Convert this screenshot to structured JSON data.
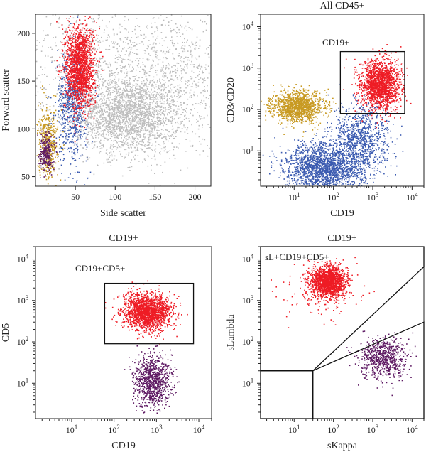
{
  "colors": {
    "red": "#ee1c25",
    "blue": "#3a5ab0",
    "gold": "#c89a22",
    "gray": "#bdbdbd",
    "purple": "#5e1a63",
    "ink": "#222222"
  },
  "chart_data": [
    {
      "id": "scatter-fsc-ssc",
      "type": "scatter",
      "title": "",
      "xlabel": "Side scatter",
      "ylabel": "Forward scatter",
      "xlim": [
        0,
        220
      ],
      "ylim": [
        40,
        220
      ],
      "xscale": "linear",
      "yscale": "linear",
      "xticks": [
        50,
        100,
        150,
        200
      ],
      "yticks": [
        50,
        100,
        150,
        200
      ],
      "grid": false,
      "populations": [
        {
          "color": "gray",
          "cx": 115,
          "cy": 115,
          "sx": 32,
          "sy": 20,
          "n": 2200
        },
        {
          "color": "gray",
          "cx": 90,
          "cy": 165,
          "sx": 75,
          "sy": 40,
          "n": 1200
        },
        {
          "color": "gray",
          "cx": 180,
          "cy": 150,
          "sx": 30,
          "sy": 40,
          "n": 500
        },
        {
          "color": "blue",
          "cx": 45,
          "cy": 125,
          "sx": 10,
          "sy": 28,
          "n": 700
        },
        {
          "color": "red",
          "cx": 55,
          "cy": 165,
          "sx": 9,
          "sy": 22,
          "n": 1700
        },
        {
          "color": "gold",
          "cx": 15,
          "cy": 85,
          "sx": 6,
          "sy": 18,
          "n": 450
        },
        {
          "color": "purple",
          "cx": 13,
          "cy": 75,
          "sx": 4,
          "sy": 10,
          "n": 250
        }
      ],
      "gates": [],
      "annotations": []
    },
    {
      "id": "scatter-cd3cd20-cd19",
      "type": "scatter",
      "title": "All CD45+",
      "xlabel": "CD19",
      "ylabel": "CD3/CD20",
      "xlim": [
        1.4,
        20000
      ],
      "ylim": [
        1.4,
        20000
      ],
      "xscale": "log",
      "yscale": "log",
      "xticks": [
        10,
        100,
        1000,
        10000
      ],
      "yticks": [
        10,
        100,
        1000,
        10000
      ],
      "grid": false,
      "populations": [
        {
          "color": "blue",
          "cx": 60,
          "cy": 4,
          "sx": 0.5,
          "sy": 0.3,
          "n": 1900
        },
        {
          "color": "blue",
          "cx": 500,
          "cy": 20,
          "sx": 0.35,
          "sy": 0.45,
          "n": 900
        },
        {
          "color": "gold",
          "cx": 12,
          "cy": 120,
          "sx": 0.32,
          "sy": 0.18,
          "n": 1300
        },
        {
          "color": "red",
          "cx": 1500,
          "cy": 400,
          "sx": 0.25,
          "sy": 0.3,
          "n": 1700
        }
      ],
      "gates": [
        {
          "shape": "rect",
          "label": "CD19+",
          "x": [
            150,
            6500
          ],
          "y": [
            80,
            2500
          ]
        }
      ],
      "annotations": []
    },
    {
      "id": "scatter-cd5-cd19",
      "type": "scatter",
      "title": "CD19+",
      "xlabel": "CD19",
      "ylabel": "CD5",
      "xlim": [
        1.4,
        20000
      ],
      "ylim": [
        1.4,
        20000
      ],
      "xscale": "log",
      "yscale": "log",
      "xticks": [
        10,
        100,
        1000,
        10000
      ],
      "yticks": [
        10,
        100,
        1000,
        10000
      ],
      "grid": false,
      "populations": [
        {
          "color": "red",
          "cx": 600,
          "cy": 550,
          "sx": 0.28,
          "sy": 0.22,
          "n": 1800
        },
        {
          "color": "purple",
          "cx": 800,
          "cy": 12,
          "sx": 0.22,
          "sy": 0.3,
          "n": 900
        }
      ],
      "gates": [
        {
          "shape": "rect",
          "label": "CD19+CD5+",
          "x": [
            60,
            7500
          ],
          "y": [
            90,
            2600
          ]
        }
      ],
      "annotations": []
    },
    {
      "id": "scatter-slambda-skappa",
      "type": "scatter",
      "title": "CD19+",
      "xlabel": "sKappa",
      "ylabel": "sLambda",
      "xlim": [
        1.4,
        20000
      ],
      "ylim": [
        1.4,
        20000
      ],
      "xscale": "log",
      "yscale": "log",
      "xticks": [
        10,
        100,
        1000,
        10000
      ],
      "yticks": [
        10,
        100,
        1000,
        10000
      ],
      "grid": false,
      "populations": [
        {
          "color": "red",
          "cx": 70,
          "cy": 3000,
          "sx": 0.22,
          "sy": 0.18,
          "n": 1600
        },
        {
          "color": "red",
          "cx": 40,
          "cy": 1500,
          "sx": 0.5,
          "sy": 0.35,
          "n": 160
        },
        {
          "color": "purple",
          "cx": 1800,
          "cy": 40,
          "sx": 0.3,
          "sy": 0.25,
          "n": 700
        }
      ],
      "gates": [
        {
          "shape": "polygon",
          "label": "sL+CD19+CD5+",
          "points": [
            [
              30,
              20
            ],
            [
              20000,
              6500
            ],
            [
              20000,
              20000
            ],
            [
              1.4,
              20000
            ],
            [
              1.4,
              20
            ]
          ]
        },
        {
          "shape": "polygon",
          "label": "",
          "points": [
            [
              30,
              20
            ],
            [
              20000,
              300
            ],
            [
              20000,
              1.4
            ],
            [
              30,
              1.4
            ]
          ]
        },
        {
          "shape": "rect",
          "label": "",
          "x": [
            1.4,
            30
          ],
          "y": [
            1.4,
            20
          ]
        }
      ],
      "annotations": []
    }
  ]
}
